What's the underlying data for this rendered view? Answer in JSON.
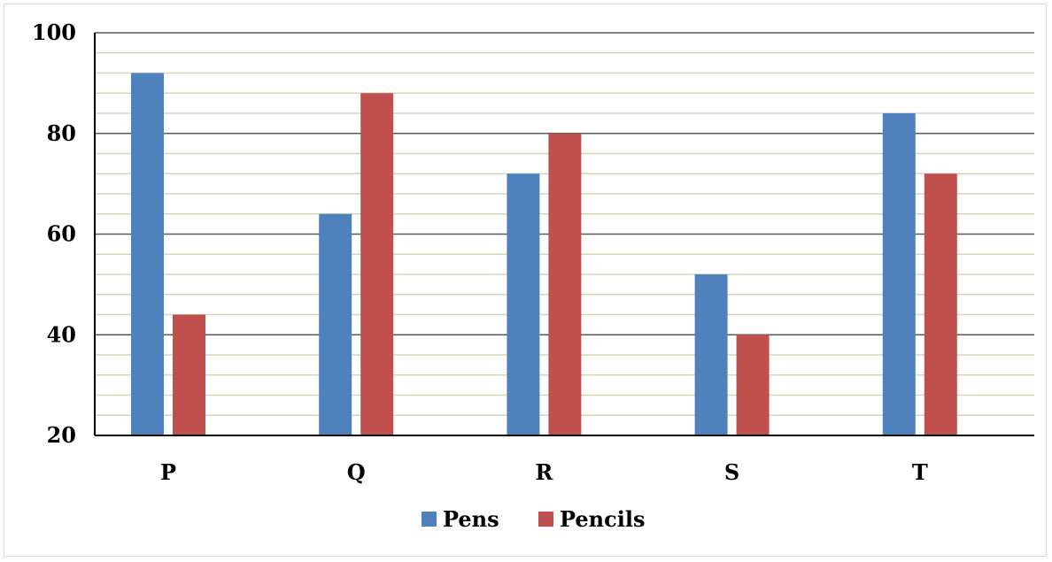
{
  "chart_data": {
    "type": "bar",
    "categories": [
      "P",
      "Q",
      "R",
      "S",
      "T"
    ],
    "series": [
      {
        "name": "Pens",
        "values": [
          92,
          64,
          72,
          52,
          84
        ],
        "color": "#4f81bd"
      },
      {
        "name": "Pencils",
        "values": [
          44,
          88,
          80,
          40,
          72
        ],
        "color": "#c0504d"
      }
    ],
    "title": "",
    "xlabel": "",
    "ylabel": "",
    "ylim": [
      20,
      100
    ],
    "yticks": [
      20,
      40,
      60,
      80,
      100
    ],
    "minor_grid_step": 4,
    "grid": true,
    "legend_position": "bottom",
    "major_grid_color": "#595959",
    "minor_grid_color": "#d9d4b8"
  }
}
